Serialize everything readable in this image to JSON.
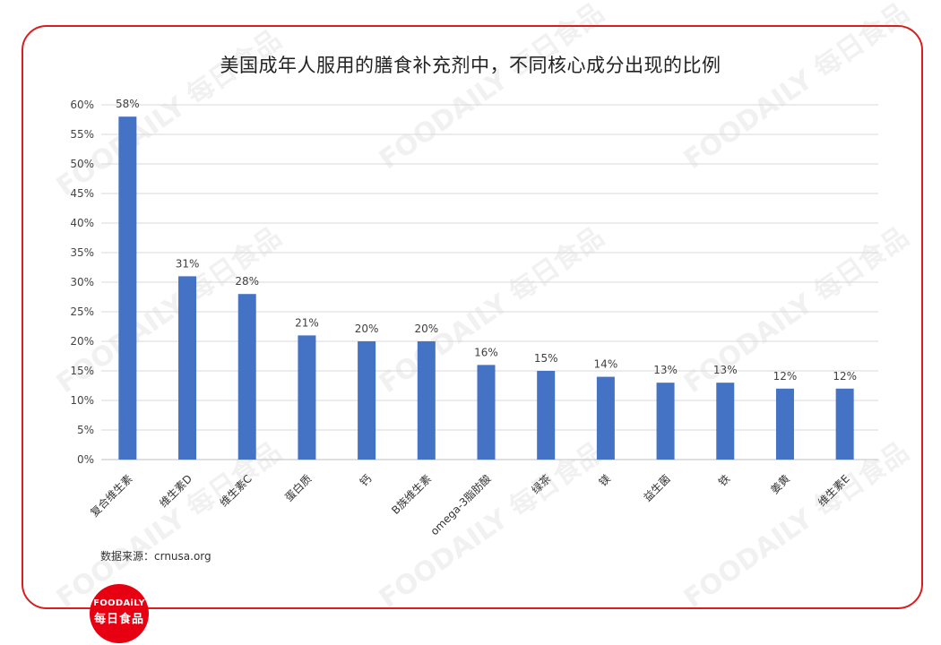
{
  "title": "美国成年人服用的膳食补充剂中，不同核心成分出现的比例",
  "source": "数据来源：crnusa.org",
  "logo": {
    "en": "FOODAiLY",
    "cn": "每日食品"
  },
  "watermark": "FOODAILY 每日食品",
  "colors": {
    "bar": "#4472c4",
    "frame": "#d81e1e",
    "logo": "#e60012",
    "grid": "#d9d9d9"
  },
  "chart_data": {
    "type": "bar",
    "title": "美国成年人服用的膳食补充剂中，不同核心成分出现的比例",
    "categories": [
      "复合维生素",
      "维生素D",
      "维生素C",
      "蛋白质",
      "钙",
      "B族维生素",
      "omega-3脂肪酸",
      "绿茶",
      "镁",
      "益生菌",
      "铁",
      "姜黄",
      "维生素E"
    ],
    "values": [
      58,
      31,
      28,
      21,
      20,
      20,
      16,
      15,
      14,
      13,
      13,
      12,
      12
    ],
    "value_labels": [
      "58%",
      "31%",
      "28%",
      "21%",
      "20%",
      "20%",
      "16%",
      "15%",
      "14%",
      "13%",
      "13%",
      "12%",
      "12%"
    ],
    "yticks": [
      "0%",
      "5%",
      "10%",
      "15%",
      "20%",
      "25%",
      "30%",
      "35%",
      "40%",
      "45%",
      "50%",
      "55%",
      "60%"
    ],
    "ylim": [
      0,
      60
    ],
    "xlabel": "",
    "ylabel": "",
    "grid": true,
    "legend": "none"
  }
}
